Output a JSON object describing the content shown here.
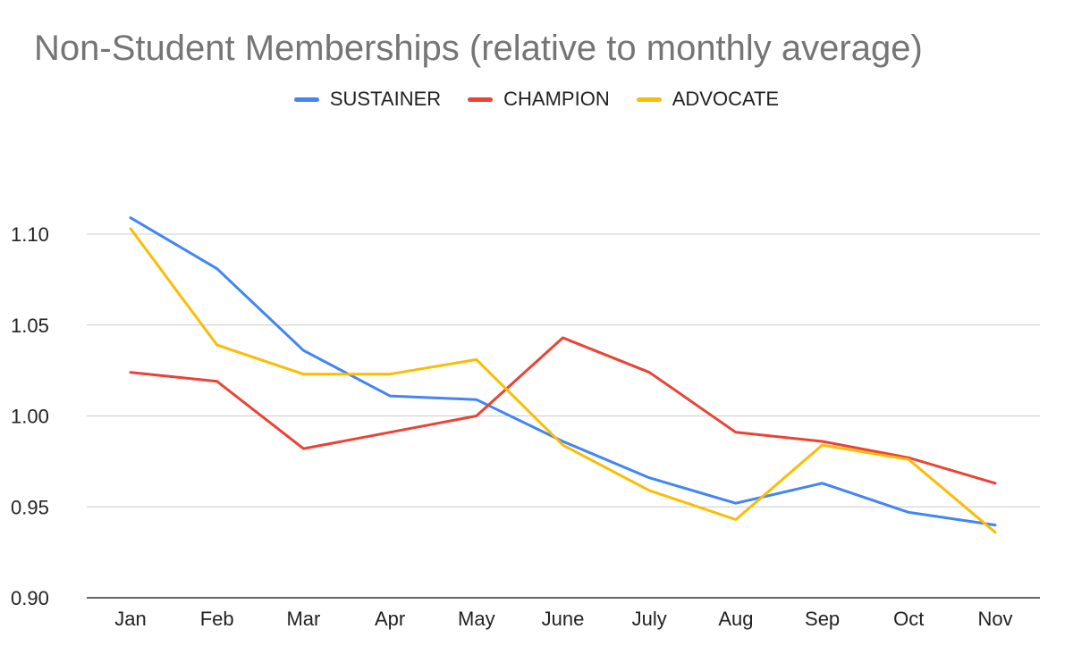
{
  "chart_data": {
    "type": "line",
    "title": "Non-Student Memberships (relative to monthly average)",
    "xlabel": "",
    "ylabel": "",
    "categories": [
      "Jan",
      "Feb",
      "Mar",
      "Apr",
      "May",
      "June",
      "July",
      "Aug",
      "Sep",
      "Oct",
      "Nov"
    ],
    "ylim": [
      0.9,
      1.1
    ],
    "yticks": [
      "0.90",
      "0.95",
      "1.00",
      "1.05",
      "1.10"
    ],
    "grid": "horizontal",
    "legend_position": "top",
    "series": [
      {
        "name": "SUSTAINER",
        "color": "#4285F4",
        "values": [
          1.109,
          1.081,
          1.036,
          1.011,
          1.009,
          0.986,
          0.966,
          0.952,
          0.963,
          0.947,
          0.94
        ]
      },
      {
        "name": "CHAMPION",
        "color": "#EA4335",
        "values": [
          1.024,
          1.019,
          0.982,
          0.991,
          1.0,
          1.043,
          1.024,
          0.991,
          0.986,
          0.977,
          0.963
        ]
      },
      {
        "name": "ADVOCATE",
        "color": "#FBBC04",
        "values": [
          1.103,
          1.039,
          1.023,
          1.023,
          1.031,
          0.984,
          0.959,
          0.943,
          0.984,
          0.976,
          0.936
        ]
      }
    ]
  }
}
